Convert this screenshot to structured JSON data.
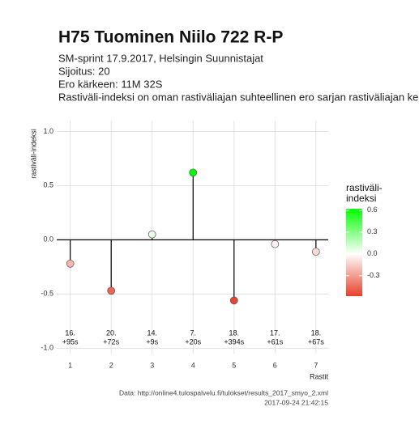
{
  "chart_data": {
    "type": "lollipop",
    "title": "H75 Tuominen Niilo 722 R-P",
    "subtitle": [
      "SM-sprint 17.9.2017, Helsingin Suunnistajat",
      "Sijoitus: 20",
      "Ero kärkeen: 11M 32S",
      "Rastiväli-indeksi on oman rastiväliajan suhteellinen ero sarjan rastiväliajan kes"
    ],
    "x_label": "Rastit",
    "y_label": "rastiväli-indeksi",
    "x": [
      1,
      2,
      3,
      4,
      5,
      6,
      7
    ],
    "values": [
      -0.22,
      -0.47,
      0.05,
      0.62,
      -0.56,
      -0.04,
      -0.11
    ],
    "point_labels": [
      [
        "16.",
        "+95s"
      ],
      [
        "20.",
        "+72s"
      ],
      [
        "14.",
        "+9s"
      ],
      [
        "7.",
        "+20s"
      ],
      [
        "18.",
        "+394s"
      ],
      [
        "17.",
        "+61s"
      ],
      [
        "18.",
        "+67s"
      ]
    ],
    "xlim": [
      0.67,
      7.3
    ],
    "ylim": [
      -1.05,
      1.1
    ],
    "xticks": [
      1,
      2,
      3,
      4,
      5,
      6,
      7
    ],
    "yticks": [
      {
        "value": -1,
        "label": "-1.0"
      },
      -0.5,
      {
        "value": 0,
        "label": "0.0"
      },
      0.5,
      {
        "value": 1,
        "label": "1.0"
      }
    ],
    "grid": true,
    "colorbar": {
      "title": [
        "rastiväli-",
        "indeksi"
      ],
      "lim": [
        -0.58,
        0.62
      ],
      "colors": [
        "#e8402a",
        "#ffffff",
        "#00ff00"
      ],
      "ticks": [
        0.6,
        0.3,
        {
          "value": 0,
          "label": "0.0"
        },
        -0.3
      ]
    },
    "caption": [
      "Data: http://online4.tulospalvelu.fi/tulokset/results_2017_smyo_2.xml",
      "2017-09-24 21:42:15"
    ]
  }
}
